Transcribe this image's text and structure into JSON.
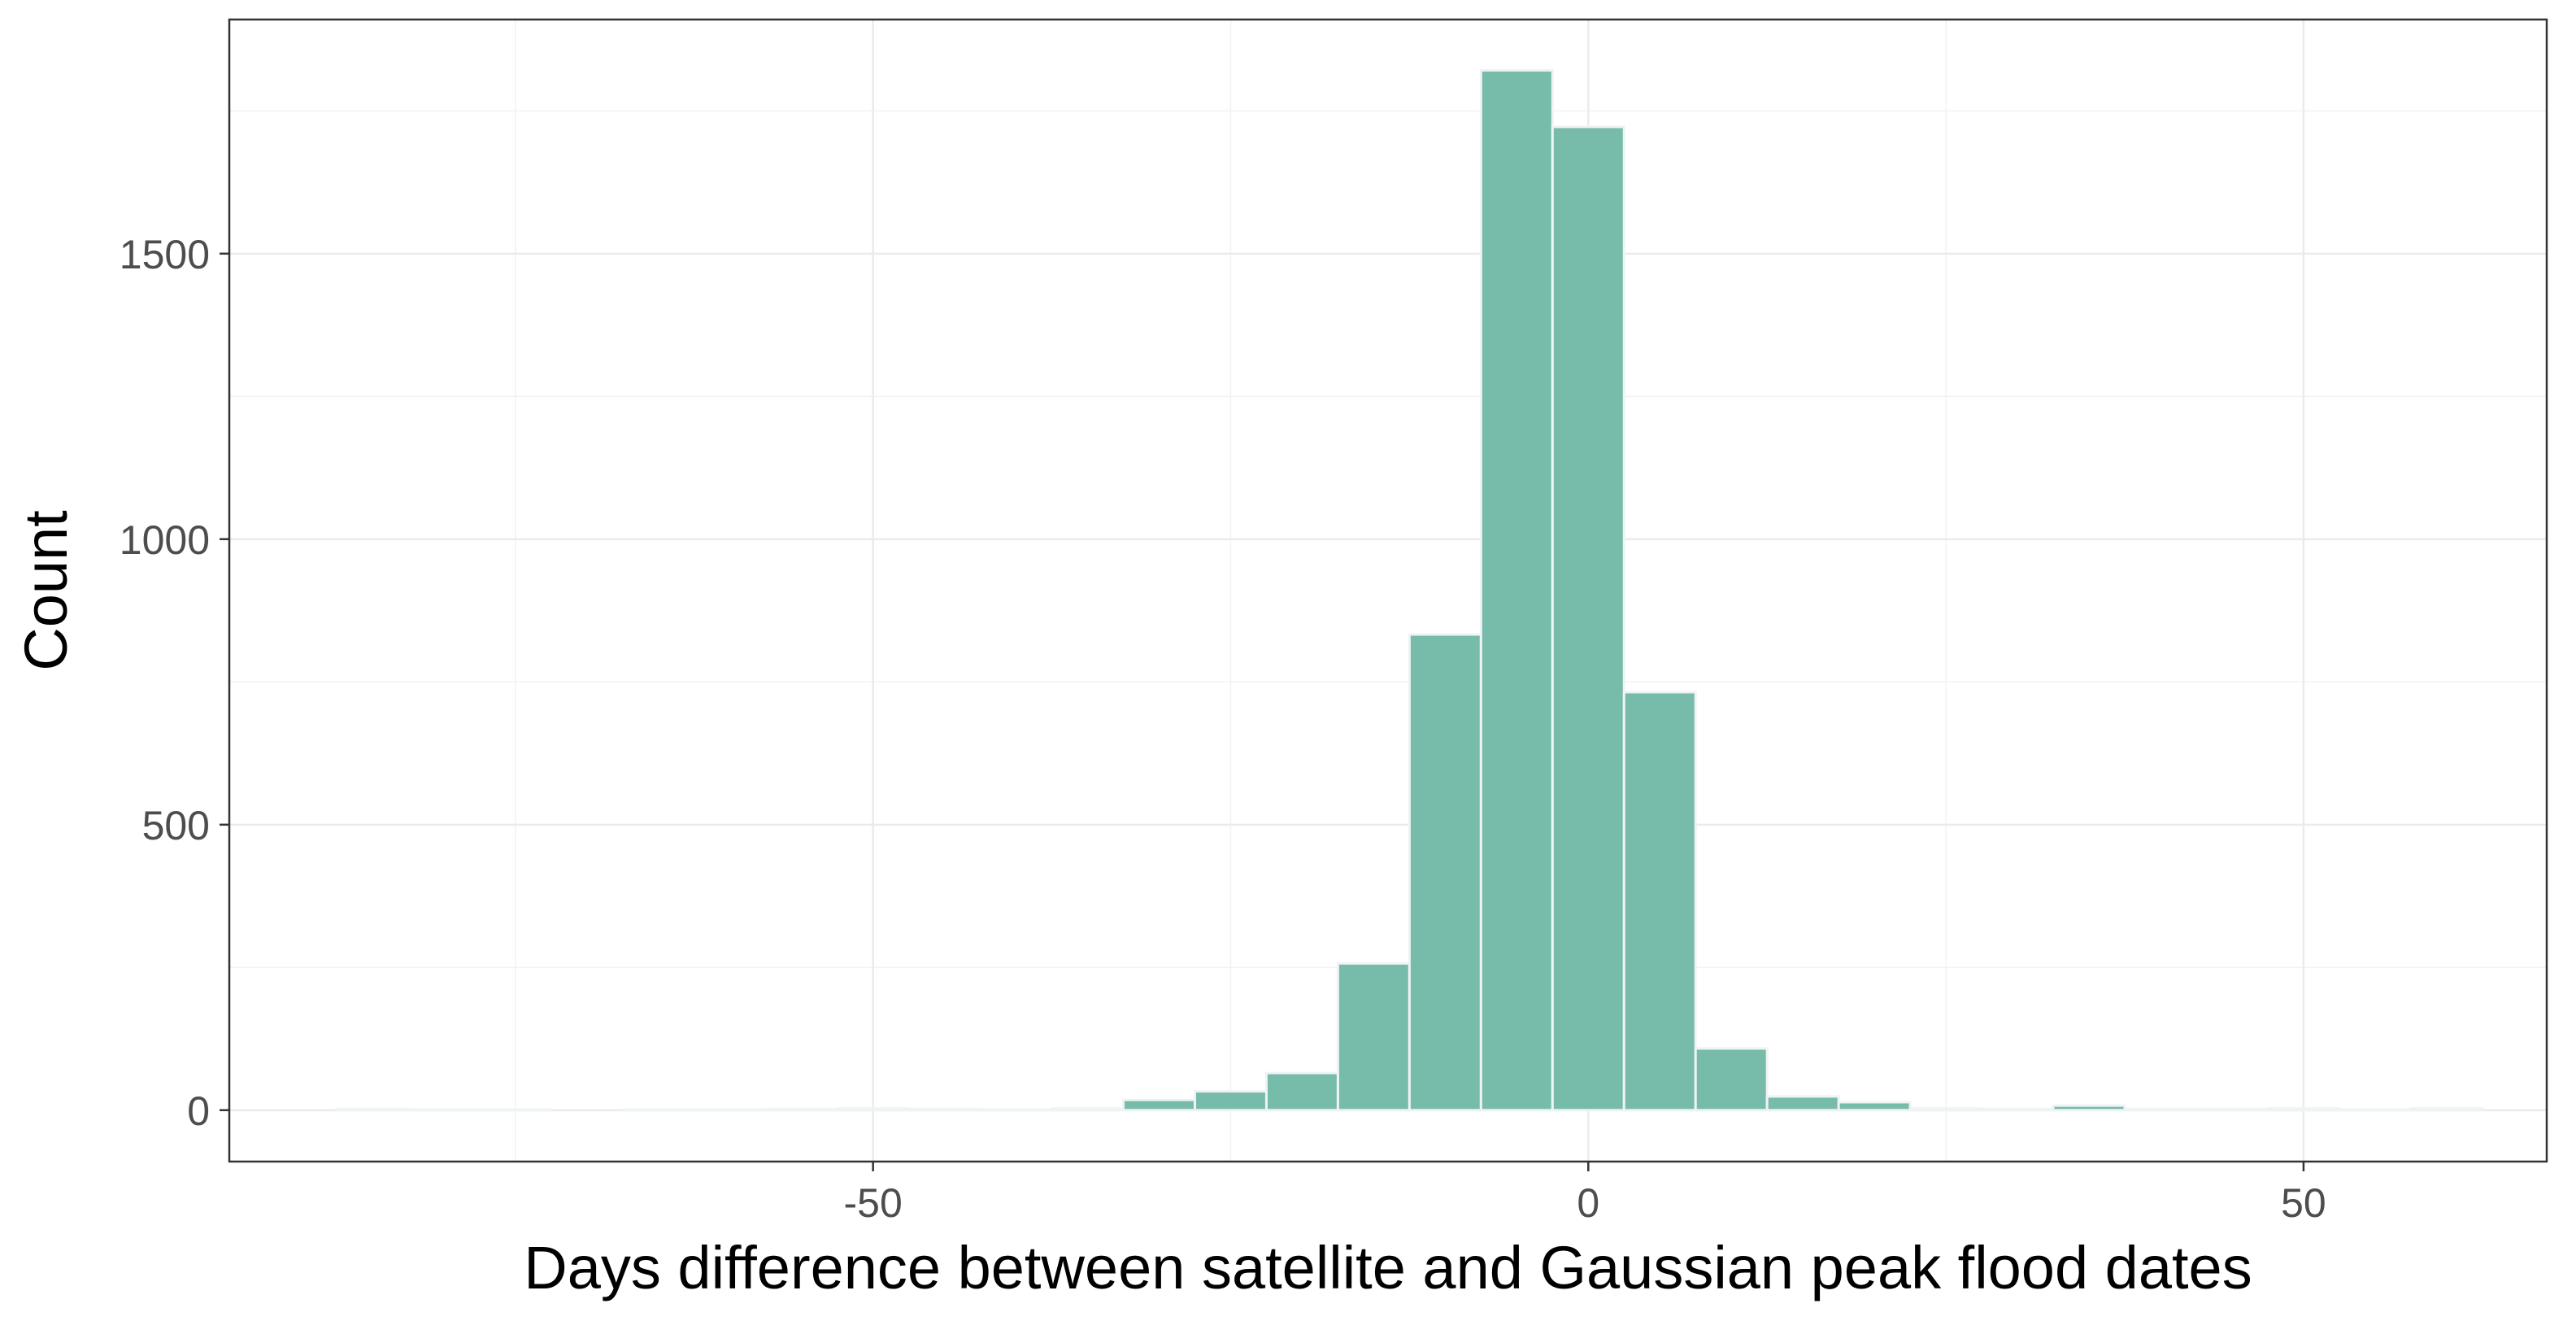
{
  "chart_data": {
    "type": "bar",
    "title": "",
    "xlabel": "Days difference between satellite and Gaussian peak flood dates",
    "ylabel": "Count",
    "xlim": [
      -95,
      67
    ],
    "ylim": [
      -90,
      1910
    ],
    "x_ticks": [
      -50,
      0,
      50
    ],
    "y_ticks": [
      0,
      500,
      1000,
      1500
    ],
    "grid": true,
    "legend": "none",
    "bar_fill": "#77bbaa",
    "bar_stroke": "#eef3f3",
    "bin_width": 5,
    "bins": [
      {
        "start": -87.5,
        "value": 2
      },
      {
        "start": -82.5,
        "value": 1
      },
      {
        "start": -77.5,
        "value": 1
      },
      {
        "start": -72.5,
        "value": 0
      },
      {
        "start": -67.5,
        "value": 1
      },
      {
        "start": -62.5,
        "value": 1
      },
      {
        "start": -57.5,
        "value": 2
      },
      {
        "start": -52.5,
        "value": 3
      },
      {
        "start": -47.5,
        "value": 2
      },
      {
        "start": -42.5,
        "value": 1
      },
      {
        "start": -37.5,
        "value": 3
      },
      {
        "start": -32.5,
        "value": 18
      },
      {
        "start": -27.5,
        "value": 33
      },
      {
        "start": -22.5,
        "value": 65
      },
      {
        "start": -17.5,
        "value": 257
      },
      {
        "start": -12.5,
        "value": 833
      },
      {
        "start": -7.5,
        "value": 1821
      },
      {
        "start": -2.5,
        "value": 1722
      },
      {
        "start": 2.5,
        "value": 732
      },
      {
        "start": 7.5,
        "value": 108
      },
      {
        "start": 12.5,
        "value": 24
      },
      {
        "start": 17.5,
        "value": 14
      },
      {
        "start": 22.5,
        "value": 3
      },
      {
        "start": 27.5,
        "value": 2
      },
      {
        "start": 32.5,
        "value": 8
      },
      {
        "start": 37.5,
        "value": 2
      },
      {
        "start": 42.5,
        "value": 2
      },
      {
        "start": 47.5,
        "value": 3
      },
      {
        "start": 52.5,
        "value": 1
      },
      {
        "start": 57.5,
        "value": 3
      }
    ]
  }
}
